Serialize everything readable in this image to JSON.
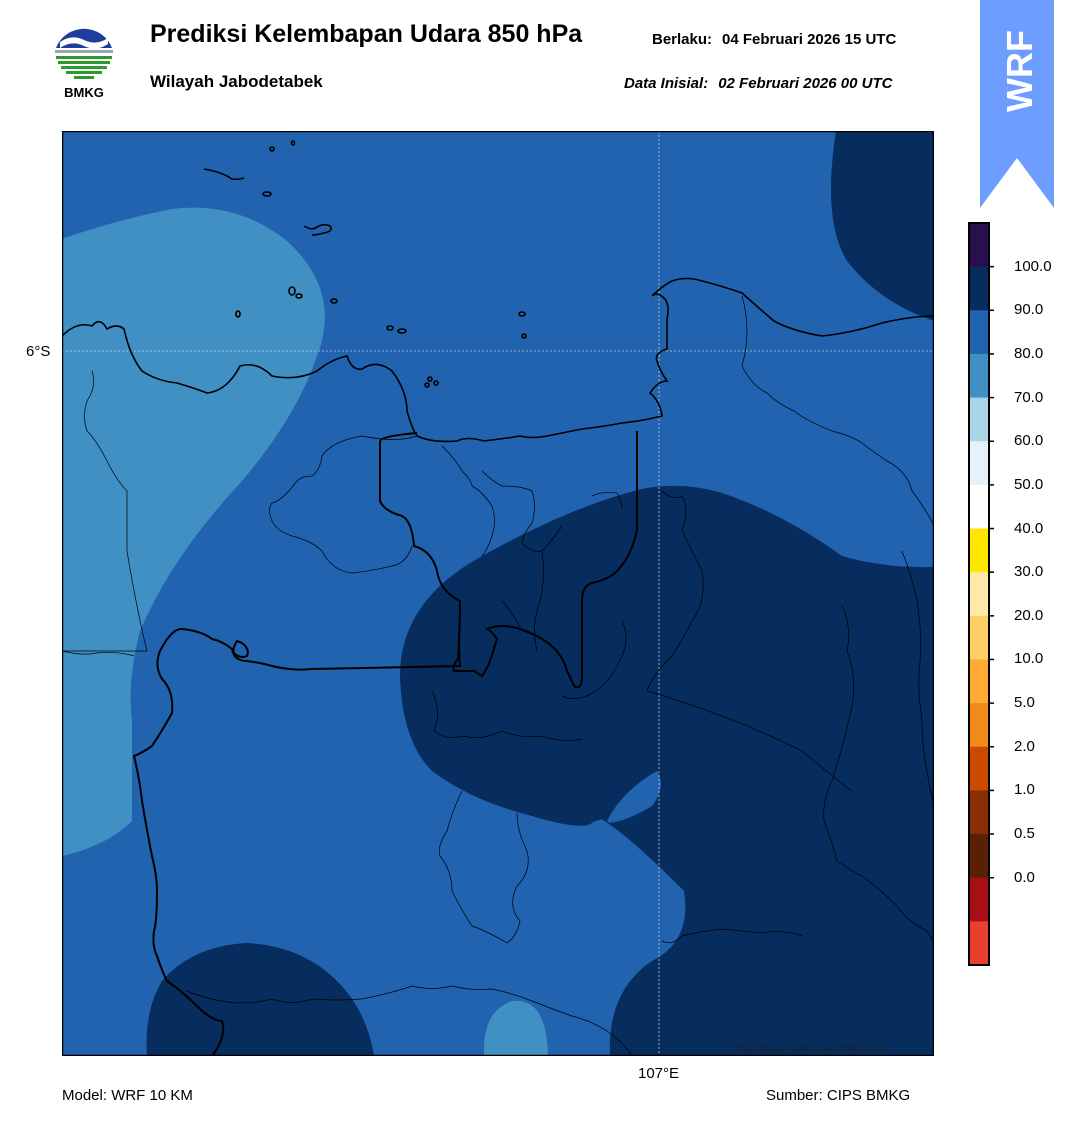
{
  "header": {
    "logo_text": "BMKG",
    "title": "Prediksi Kelembapan Udara 850 hPa",
    "subtitle": "Wilayah Jabodetabek",
    "valid_label": "Berlaku:",
    "valid_value": "04 Februari 2026 15 UTC",
    "init_label": "Data Inisial:",
    "init_value": "02 Februari 2026 00 UTC",
    "badge": "WRF"
  },
  "map": {
    "lat_label": "6°S",
    "lon_label": "107°E",
    "copyright": "©Sub Bidang Prediksi Cuaca BMKG, 2026"
  },
  "footer": {
    "model": "Model: WRF 10 KM",
    "source": "Sumber: CIPS BMKG"
  },
  "colorbar": {
    "labels": [
      "100.0",
      "90.0",
      "80.0",
      "70.0",
      "60.0",
      "50.0",
      "40.0",
      "30.0",
      "20.0",
      "10.0",
      "5.0",
      "2.0",
      "1.0",
      "0.5",
      "0.0"
    ],
    "colors_top_to_bottom": [
      "#2a0f4e",
      "#062d5e",
      "#2163ae",
      "#4090c4",
      "#a8d4e6",
      "#e6f2f8",
      "#ffffff",
      "#ffe600",
      "#ffe9a8",
      "#ffcf66",
      "#ffaa33",
      "#f08a18",
      "#cc4a00",
      "#8a2e05",
      "#5a2006",
      "#a50f15",
      "#e8402e"
    ],
    "regions": {
      "medium_blue": "#2163ae",
      "light_blue": "#4090c4",
      "dark_navy": "#062d5e"
    }
  }
}
